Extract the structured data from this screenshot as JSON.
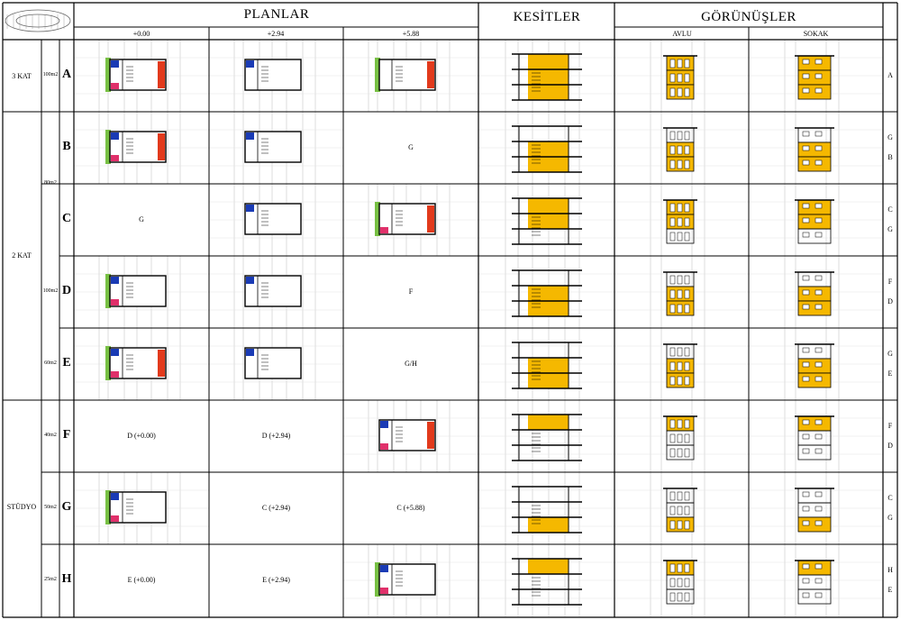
{
  "header": {
    "planlar": "PLANLAR",
    "kesitler": "KESİTLER",
    "gorunusler": "GÖRÜNÜŞLER",
    "levels": [
      "+0.00",
      "+2.94",
      "+5.88"
    ],
    "elevations": [
      "AVLU",
      "SOKAK"
    ]
  },
  "groups": [
    {
      "label": "3 KAT"
    },
    {
      "label": "2 KAT"
    },
    {
      "label": "STÜDYO"
    }
  ],
  "rows": [
    {
      "letter": "A",
      "area": "100m2",
      "plans": [
        "",
        "",
        ""
      ],
      "side": [
        "A"
      ]
    },
    {
      "letter": "B",
      "area": "",
      "plans": [
        "",
        "",
        "G"
      ],
      "side": [
        "G",
        "B"
      ]
    },
    {
      "letter": "C",
      "area": "",
      "plans": [
        "G",
        "",
        ""
      ],
      "side": [
        "C",
        "G"
      ]
    },
    {
      "letter": "D",
      "area": "100m2",
      "plans": [
        "",
        "",
        "F"
      ],
      "side": [
        "F",
        "D"
      ]
    },
    {
      "letter": "E",
      "area": "60m2",
      "plans": [
        "",
        "",
        "G/H"
      ],
      "side": [
        "G",
        "E"
      ]
    },
    {
      "letter": "F",
      "area": "40m2",
      "plans": [
        "D (+0.00)",
        "D (+2.94)",
        ""
      ],
      "side": [
        "F",
        "D"
      ]
    },
    {
      "letter": "G",
      "area": "50m2",
      "plans": [
        "",
        "C (+2.94)",
        "C (+5.88)"
      ],
      "side": [
        "C",
        "G"
      ]
    },
    {
      "letter": "H",
      "area": "25m2",
      "plans": [
        "E (+0.00)",
        "E (+2.94)",
        ""
      ],
      "side": [
        "H",
        "E"
      ]
    }
  ],
  "shared_area_bc": "80m2",
  "colors": {
    "yellow": "#f5b800",
    "blue": "#1a3bb5",
    "red": "#e23a1c",
    "pink": "#e0306a",
    "green": "#77c043",
    "grid": "#bdbdbd"
  }
}
